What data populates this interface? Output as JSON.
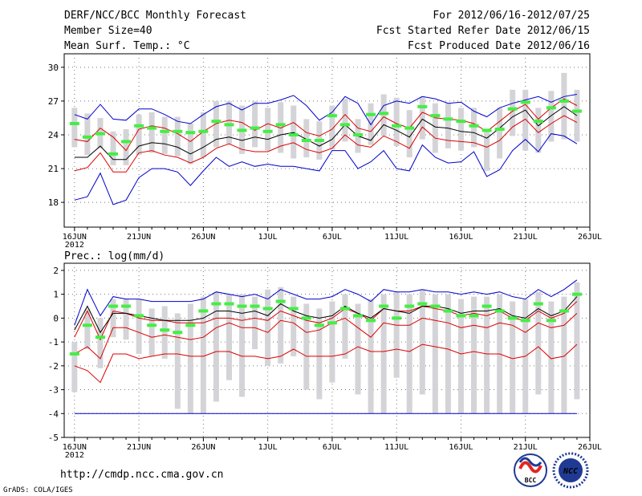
{
  "header": {
    "title": "DERF/NCC/BCC Monthly Forecast",
    "member": "Member Size=40",
    "variable": "Mean Surf. Temp.: °C",
    "period": "For 2012/06/16-2012/07/25",
    "started": "Fcst Started Refer Date 2012/06/15",
    "produced": "Fcst Produced Date 2012/06/16"
  },
  "footer": {
    "url": "http://cmdp.ncc.cma.gov.cn",
    "grads": "GrADS: COLA/IGES",
    "logo1_text": "BCC",
    "logo2_text": "NCC"
  },
  "colors": {
    "box": "#d4d4d8",
    "median": "#44ee44",
    "mean": "#000000",
    "inner": "#dd0000",
    "outer": "#0000cc",
    "logo_red": "#e52421",
    "logo_blue": "#1f3a93"
  },
  "chart_data": [
    {
      "type": "line",
      "title": "Mean Surf. Temp.: °C",
      "ylim": [
        15.8,
        31.2
      ],
      "yticks": [
        18,
        21,
        24,
        27,
        30
      ],
      "xlim": [
        -0.8,
        39.5
      ],
      "xticks": [
        {
          "x": 0,
          "label": "16JUN"
        },
        {
          "x": 5,
          "label": "21JUN"
        },
        {
          "x": 10,
          "label": "26JUN"
        },
        {
          "x": 15,
          "label": "1JUL"
        },
        {
          "x": 20,
          "label": "6JUL"
        },
        {
          "x": 25,
          "label": "11JUL"
        },
        {
          "x": 30,
          "label": "16JUL"
        },
        {
          "x": 35,
          "label": "21JUL"
        },
        {
          "x": 40,
          "label": "26JUL"
        }
      ],
      "year_label": "2012",
      "grid": true,
      "range_boxes": [
        [
          22.9,
          26.4
        ],
        [
          22.2,
          25.9
        ],
        [
          22.8,
          25.5
        ],
        [
          21.3,
          24.3
        ],
        [
          21.3,
          24.5
        ],
        [
          22.2,
          25.8
        ],
        [
          22.4,
          26.0
        ],
        [
          22.3,
          25.6
        ],
        [
          22.1,
          25.6
        ],
        [
          21.4,
          25.0
        ],
        [
          22.0,
          26.0
        ],
        [
          22.9,
          27.0
        ],
        [
          23.2,
          27.0
        ],
        [
          22.3,
          26.6
        ],
        [
          22.9,
          27.0
        ],
        [
          22.6,
          26.4
        ],
        [
          22.4,
          26.9
        ],
        [
          21.9,
          26.6
        ],
        [
          22.0,
          25.4
        ],
        [
          21.8,
          25.2
        ],
        [
          22.7,
          26.6
        ],
        [
          23.4,
          27.2
        ],
        [
          22.4,
          25.4
        ],
        [
          23.1,
          26.8
        ],
        [
          23.9,
          27.6
        ],
        [
          23.0,
          27.3
        ],
        [
          22.0,
          26.2
        ],
        [
          23.6,
          27.4
        ],
        [
          22.4,
          26.8
        ],
        [
          22.8,
          26.8
        ],
        [
          22.6,
          26.4
        ],
        [
          22.9,
          26.4
        ],
        [
          20.8,
          24.5
        ],
        [
          21.9,
          26.4
        ],
        [
          23.9,
          28.0
        ],
        [
          22.6,
          28.0
        ],
        [
          22.4,
          26.4
        ],
        [
          23.4,
          27.9
        ],
        [
          23.6,
          29.5
        ],
        [
          23.4,
          28.0
        ]
      ],
      "series": [
        {
          "name": "max",
          "color_key": "outer",
          "values": [
            25.8,
            25.4,
            26.7,
            25.4,
            25.3,
            26.3,
            26.3,
            25.8,
            25.2,
            25.0,
            25.8,
            26.5,
            26.8,
            26.2,
            26.8,
            26.8,
            27.1,
            27.5,
            26.6,
            25.3,
            26.0,
            27.4,
            26.8,
            24.9,
            26.6,
            27.0,
            26.8,
            27.4,
            27.2,
            26.8,
            26.9,
            26.1,
            25.6,
            26.4,
            26.8,
            27.1,
            27.4,
            26.9,
            27.4,
            27.6
          ]
        },
        {
          "name": "upper",
          "color_key": "inner",
          "values": [
            23.6,
            23.4,
            24.6,
            23.8,
            22.6,
            24.5,
            24.8,
            24.6,
            24.1,
            23.4,
            24.3,
            25.0,
            25.3,
            25.1,
            24.4,
            25.0,
            24.6,
            25.1,
            24.2,
            23.9,
            24.5,
            25.8,
            24.6,
            24.3,
            25.6,
            25.0,
            24.6,
            26.0,
            25.5,
            25.4,
            25.3,
            25.0,
            24.3,
            25.2,
            26.1,
            26.7,
            25.4,
            26.4,
            27.2,
            26.6
          ]
        },
        {
          "name": "mean",
          "color_key": "mean",
          "values": [
            22.0,
            22.0,
            23.0,
            21.8,
            21.8,
            23.0,
            23.3,
            23.2,
            22.9,
            22.3,
            22.9,
            23.6,
            23.8,
            23.5,
            23.8,
            23.6,
            24.0,
            24.2,
            23.6,
            23.0,
            23.6,
            24.9,
            23.9,
            23.5,
            24.9,
            24.4,
            23.8,
            25.4,
            24.7,
            24.6,
            24.3,
            24.2,
            23.7,
            24.6,
            25.6,
            26.2,
            24.8,
            25.7,
            26.5,
            25.7
          ]
        },
        {
          "name": "lower",
          "color_key": "inner",
          "values": [
            20.8,
            21.1,
            22.4,
            20.7,
            20.7,
            22.4,
            22.6,
            22.2,
            22.0,
            21.5,
            22.0,
            22.8,
            23.2,
            22.7,
            22.5,
            22.5,
            23.0,
            23.3,
            22.7,
            22.4,
            22.8,
            24.0,
            23.1,
            22.9,
            23.9,
            23.4,
            22.8,
            24.7,
            23.7,
            23.5,
            23.4,
            23.3,
            22.9,
            23.5,
            24.7,
            25.4,
            24.2,
            25.0,
            25.7,
            25.1
          ]
        },
        {
          "name": "min",
          "color_key": "outer",
          "values": [
            18.2,
            18.5,
            20.6,
            17.8,
            18.2,
            20.2,
            21.0,
            21.0,
            20.7,
            19.5,
            20.8,
            22.0,
            21.2,
            21.6,
            21.2,
            21.4,
            21.2,
            21.2,
            21.0,
            20.8,
            22.6,
            22.6,
            21.0,
            21.6,
            22.6,
            21.0,
            20.8,
            23.1,
            22.0,
            21.5,
            21.6,
            22.5,
            20.3,
            20.9,
            22.6,
            23.6,
            22.5,
            24.1,
            23.9,
            23.2
          ]
        }
      ],
      "medians": [
        25.0,
        23.8,
        24.1,
        22.3,
        23.4,
        24.8,
        24.6,
        24.3,
        24.3,
        24.2,
        24.3,
        25.2,
        24.9,
        24.4,
        24.6,
        24.3,
        24.9,
        24.0,
        23.5,
        23.5,
        25.7,
        24.9,
        24.0,
        25.8,
        25.9,
        24.8,
        24.6,
        26.5,
        25.7,
        25.4,
        25.2,
        24.8,
        24.4,
        24.5,
        26.3,
        26.9,
        25.2,
        26.4,
        27.0,
        26.1
      ]
    },
    {
      "type": "line",
      "title": "Prec.: log(mm/d)",
      "ylim": [
        -5,
        2.3
      ],
      "yticks": [
        -5,
        -4,
        -3,
        -2,
        -1,
        0,
        1,
        2
      ],
      "xlim": [
        -0.8,
        39.5
      ],
      "xticks": [
        {
          "x": 0,
          "label": "16JUN"
        },
        {
          "x": 5,
          "label": "21JUN"
        },
        {
          "x": 10,
          "label": "26JUN"
        },
        {
          "x": 15,
          "label": "1JUL"
        },
        {
          "x": 20,
          "label": "6JUL"
        },
        {
          "x": 25,
          "label": "11JUL"
        },
        {
          "x": 30,
          "label": "16JUL"
        },
        {
          "x": 35,
          "label": "21JUL"
        },
        {
          "x": 40,
          "label": "26JUL"
        }
      ],
      "year_label": "2012",
      "grid": true,
      "floor_value": -4,
      "range_boxes": [
        [
          -3.1,
          -1.0
        ],
        [
          -1.3,
          0.4
        ],
        [
          -2.1,
          0.0
        ],
        [
          -0.8,
          0.8
        ],
        [
          -0.9,
          0.8
        ],
        [
          -1.5,
          0.8
        ],
        [
          -1.6,
          0.4
        ],
        [
          -1.7,
          0.5
        ],
        [
          -3.8,
          0.2
        ],
        [
          -4.0,
          0.6
        ],
        [
          -4.0,
          0.9
        ],
        [
          -3.5,
          1.1
        ],
        [
          -2.6,
          1.0
        ],
        [
          -3.3,
          1.0
        ],
        [
          -1.3,
          0.9
        ],
        [
          -2.0,
          1.2
        ],
        [
          -1.9,
          1.3
        ],
        [
          -1.6,
          0.9
        ],
        [
          -3.0,
          0.6
        ],
        [
          -3.4,
          0.4
        ],
        [
          -2.7,
          0.7
        ],
        [
          -1.7,
          1.0
        ],
        [
          -3.2,
          0.6
        ],
        [
          -4.0,
          0.8
        ],
        [
          -4.0,
          1.0
        ],
        [
          -2.5,
          1.1
        ],
        [
          -4.0,
          1.0
        ],
        [
          -3.2,
          1.2
        ],
        [
          -4.0,
          1.0
        ],
        [
          -4.0,
          1.0
        ],
        [
          -4.0,
          0.8
        ],
        [
          -4.0,
          0.9
        ],
        [
          -4.0,
          0.9
        ],
        [
          -4.0,
          1.0
        ],
        [
          -4.0,
          0.7
        ],
        [
          -4.0,
          0.8
        ],
        [
          -3.2,
          1.1
        ],
        [
          -4.0,
          0.7
        ],
        [
          -4.0,
          0.9
        ],
        [
          -3.4,
          1.5
        ]
      ],
      "series": [
        {
          "name": "max",
          "color_key": "outer",
          "values": [
            -0.3,
            1.2,
            0.1,
            0.9,
            0.8,
            0.8,
            0.7,
            0.7,
            0.7,
            0.7,
            0.8,
            1.1,
            1.0,
            0.9,
            1.0,
            0.8,
            1.2,
            1.0,
            0.8,
            0.8,
            0.9,
            1.2,
            1.0,
            0.7,
            1.2,
            1.1,
            1.1,
            1.2,
            1.1,
            1.1,
            1.0,
            1.1,
            1.0,
            1.1,
            0.9,
            0.8,
            1.2,
            0.9,
            1.2,
            1.6
          ]
        },
        {
          "name": "upper",
          "color_key": "inner",
          "values": [
            -0.8,
            0.3,
            -0.9,
            0.3,
            0.2,
            0.0,
            -0.1,
            -0.1,
            -0.2,
            -0.2,
            -0.2,
            0.0,
            0.0,
            -0.1,
            0.0,
            -0.1,
            0.3,
            0.1,
            -0.1,
            -0.2,
            0.0,
            0.4,
            0.2,
            -0.1,
            0.4,
            0.3,
            0.3,
            0.5,
            0.4,
            0.3,
            0.1,
            0.2,
            0.1,
            0.3,
            0.0,
            -0.1,
            0.3,
            0.0,
            0.2,
            0.7
          ]
        },
        {
          "name": "mean",
          "color_key": "mean",
          "values": [
            -0.5,
            0.5,
            -0.6,
            0.2,
            0.2,
            0.1,
            0.0,
            -0.1,
            -0.1,
            -0.1,
            0.0,
            0.3,
            0.3,
            0.2,
            0.3,
            0.1,
            0.6,
            0.3,
            0.1,
            0.0,
            0.1,
            0.5,
            0.2,
            0.0,
            0.4,
            0.3,
            0.2,
            0.5,
            0.5,
            0.4,
            0.2,
            0.3,
            0.3,
            0.4,
            0.1,
            0.0,
            0.4,
            0.1,
            0.3,
            0.9
          ]
        },
        {
          "name": "lower",
          "color_key": "inner",
          "values": [
            -1.5,
            -1.2,
            -1.7,
            -0.4,
            -0.4,
            -0.6,
            -0.8,
            -0.7,
            -0.8,
            -0.9,
            -0.8,
            -0.4,
            -0.2,
            -0.4,
            -0.4,
            -0.6,
            -0.1,
            -0.2,
            -0.6,
            -0.5,
            -0.2,
            0.0,
            -0.4,
            -0.8,
            -0.2,
            -0.3,
            -0.3,
            0.0,
            -0.1,
            -0.2,
            -0.4,
            -0.3,
            -0.4,
            -0.2,
            -0.3,
            -0.6,
            -0.2,
            -0.4,
            -0.3,
            0.2
          ]
        },
        {
          "name": "min",
          "color_key": "inner",
          "values": [
            -2.0,
            -2.2,
            -2.7,
            -1.5,
            -1.5,
            -1.7,
            -1.6,
            -1.5,
            -1.5,
            -1.6,
            -1.6,
            -1.4,
            -1.4,
            -1.6,
            -1.6,
            -1.7,
            -1.6,
            -1.3,
            -1.6,
            -1.6,
            -1.6,
            -1.5,
            -1.2,
            -1.4,
            -1.4,
            -1.3,
            -1.4,
            -1.1,
            -1.2,
            -1.3,
            -1.5,
            -1.4,
            -1.5,
            -1.5,
            -1.7,
            -1.6,
            -1.2,
            -1.7,
            -1.6,
            -1.1
          ]
        }
      ],
      "medians": [
        -1.5,
        -0.3,
        -0.8,
        0.5,
        0.5,
        0.1,
        -0.3,
        -0.5,
        -0.6,
        -0.3,
        0.3,
        0.6,
        0.6,
        0.5,
        0.5,
        0.4,
        0.7,
        0.4,
        0.0,
        -0.3,
        -0.2,
        0.4,
        0.1,
        -0.1,
        0.5,
        0.0,
        0.5,
        0.6,
        0.5,
        0.3,
        0.1,
        0.1,
        0.5,
        0.3,
        0.0,
        -0.1,
        0.6,
        -0.1,
        0.3,
        1.0
      ]
    }
  ]
}
